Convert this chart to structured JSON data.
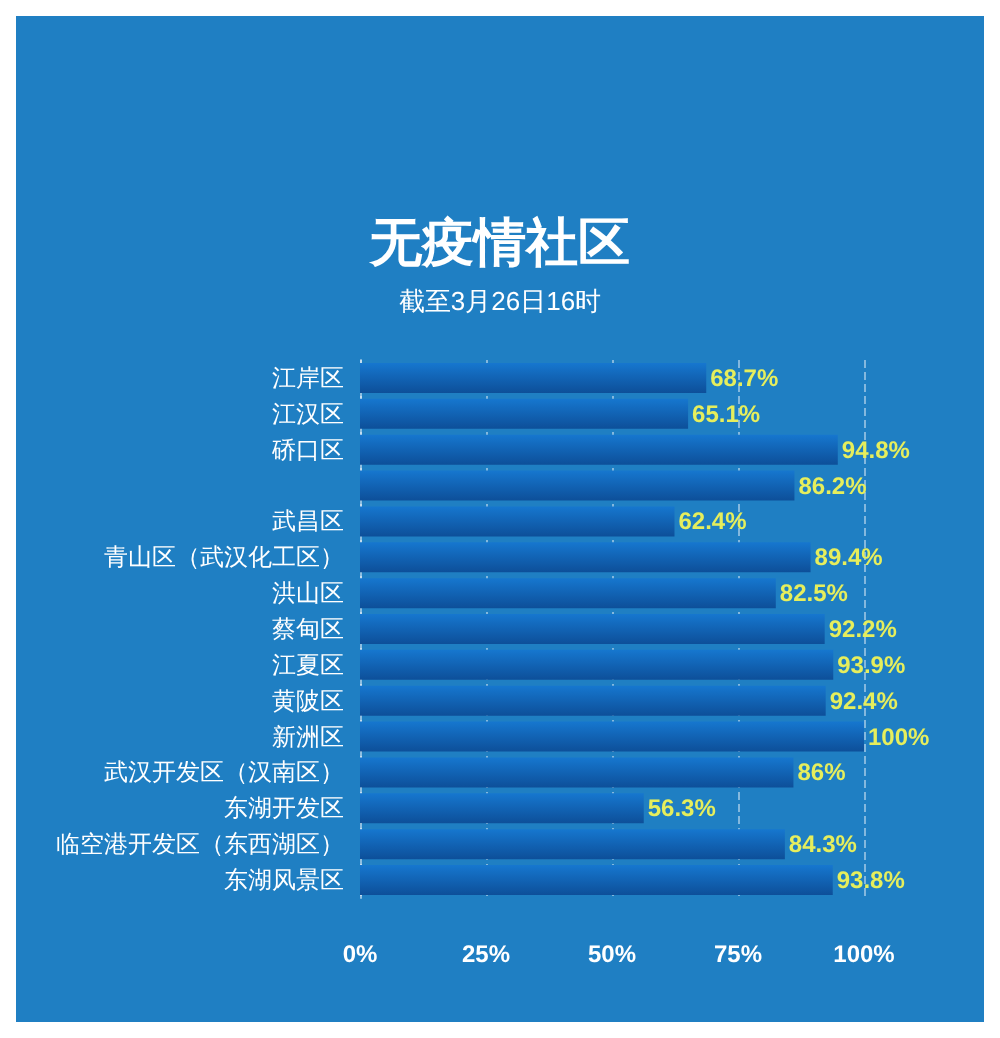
{
  "chart_data": {
    "type": "bar",
    "orientation": "horizontal",
    "title": "无疫情社区",
    "subtitle": "截至3月26日16时",
    "categories": [
      "江岸区",
      "江汉区",
      "硚口区",
      null,
      "武昌区",
      "青山区（武汉化工区）",
      "洪山区",
      "蔡甸区",
      "江夏区",
      "黄陂区",
      "新洲区",
      "武汉开发区（汉南区）",
      "东湖开发区",
      "临空港开发区（东西湖区）",
      "东湖风景区"
    ],
    "values": [
      68.7,
      65.1,
      94.8,
      86.2,
      62.4,
      89.4,
      82.5,
      92.2,
      93.9,
      92.4,
      100,
      86,
      56.3,
      84.3,
      93.8
    ],
    "value_labels": [
      "68.7%",
      "65.1%",
      "94.8%",
      "86.2%",
      "62.4%",
      "89.4%",
      "82.5%",
      "92.2%",
      "93.9%",
      "92.4%",
      "100%",
      "86%",
      "56.3%",
      "84.3%",
      "93.8%"
    ],
    "color": "#1677cf",
    "xlim": [
      0,
      100
    ],
    "xticks": [
      {
        "value": 0,
        "label": "0%"
      },
      {
        "value": 25,
        "label": "25%"
      },
      {
        "value": 50,
        "label": "50%"
      },
      {
        "value": 75,
        "label": "75%"
      },
      {
        "value": 100,
        "label": "100%"
      }
    ],
    "grid": "x"
  }
}
